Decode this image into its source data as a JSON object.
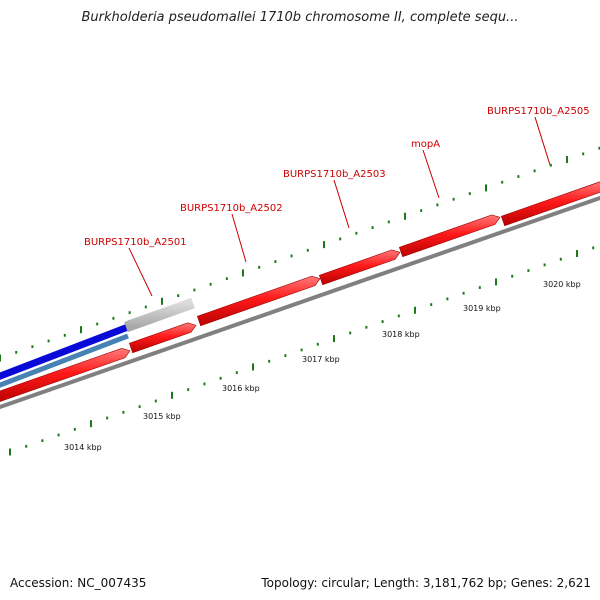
{
  "title": "Burkholderia pseudomallei 1710b chromosome II, complete sequ...",
  "footer": {
    "accession": "Accession: NC_007435",
    "stats": "Topology: circular; Length: 3,181,762 bp; Genes: 2,621"
  },
  "colors": {
    "gene": "#ff1a1a",
    "gene_label": "#cc0000",
    "backbone": "#808080",
    "tick": "#1a7a1a",
    "blue_track": "#0a0ad8",
    "steel_track": "#4682b4",
    "grey_feature": "#c8c8c8"
  },
  "chart_data": {
    "type": "genome-map",
    "scale_unit": "kbp",
    "scale_labels": [
      "3014 kbp",
      "3015 kbp",
      "3016 kbp",
      "3017 kbp",
      "3018 kbp",
      "3019 kbp",
      "3020 kbp"
    ],
    "gene_labels": [
      "BURPS1710b_A2501",
      "BURPS1710b_A2502",
      "BURPS1710b_A2503",
      "mopA",
      "BURPS1710b_A2505"
    ]
  }
}
